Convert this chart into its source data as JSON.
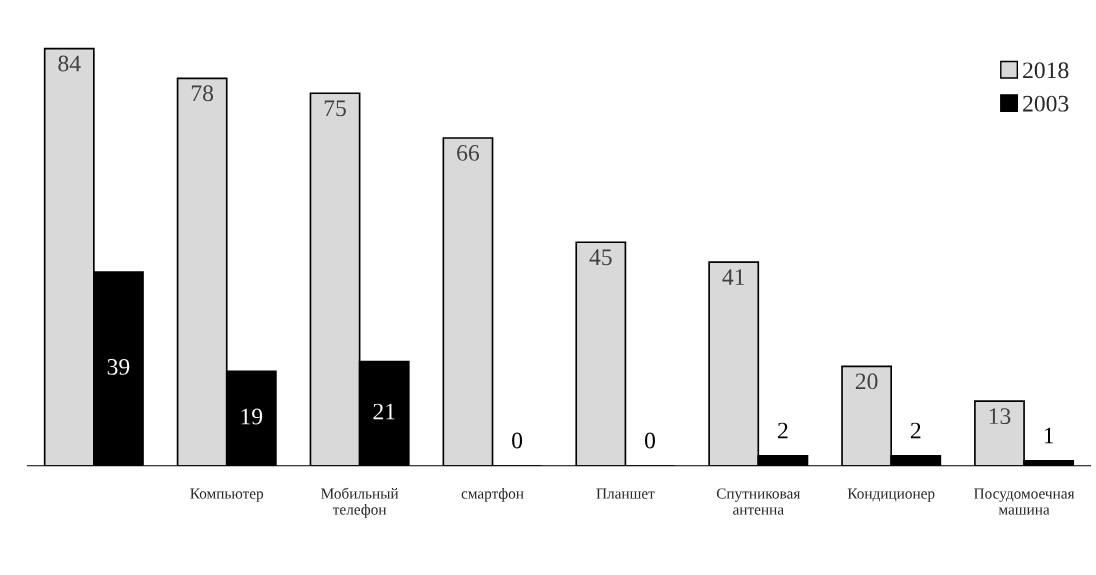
{
  "chart_data": {
    "type": "bar",
    "categories": [
      null,
      "Компьютер",
      "Мобильный\nтелефон",
      "смартфон",
      "Планшет",
      "Спутниковая\nантенна",
      "Кондиционер",
      "Посудомоечная\nмашина"
    ],
    "series": [
      {
        "name": "2018",
        "color": "#d9d9d9",
        "values": [
          84,
          78,
          75,
          66,
          45,
          41,
          20,
          13
        ]
      },
      {
        "name": "2003",
        "color": "#000000",
        "values": [
          39,
          19,
          21,
          0,
          0,
          2,
          2,
          1
        ]
      }
    ],
    "data_labels": true,
    "legend": "top right",
    "grid": false
  }
}
